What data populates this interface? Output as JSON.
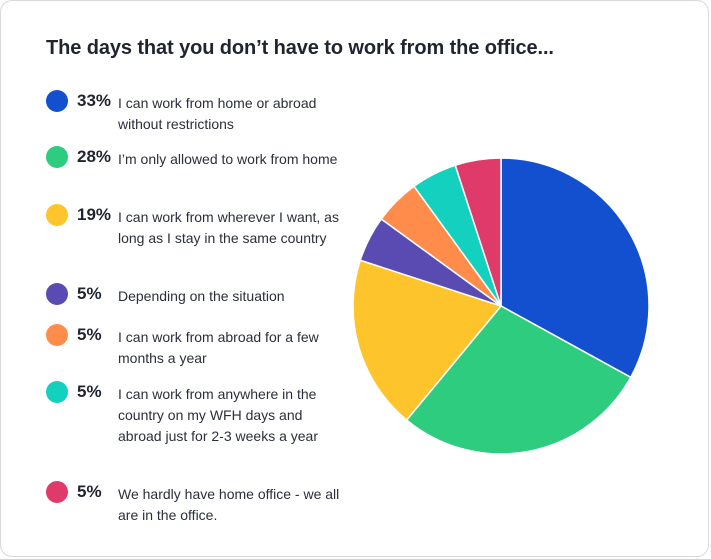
{
  "title": "The days that you don’t have to work from the office...",
  "chart_data": {
    "type": "pie",
    "slices": [
      {
        "pct_label": "33%",
        "value": 33,
        "label": "I can work from home or abroad without restrictions",
        "color": "#1350d0"
      },
      {
        "pct_label": "28%",
        "value": 28,
        "label": "I’m only allowed to work from home",
        "color": "#2ecc7f"
      },
      {
        "pct_label": "19%",
        "value": 19,
        "label": "I can work from wherever I want, as long as I stay in the same country",
        "color": "#fdc42c"
      },
      {
        "pct_label": "5%",
        "value": 5,
        "label": "Depending on the situation",
        "color": "#5a4bb3"
      },
      {
        "pct_label": "5%",
        "value": 5,
        "label": "I can work from abroad for a few months a year",
        "color": "#ff8c4a"
      },
      {
        "pct_label": "5%",
        "value": 5,
        "label": "I can work from anywhere in the country on my WFH days and abroad just for 2-3 weeks a year",
        "color": "#13d1be"
      },
      {
        "pct_label": "5%",
        "value": 5,
        "label": "We hardly have home office - we all are in the office.",
        "color": "#e03a6a"
      }
    ]
  }
}
